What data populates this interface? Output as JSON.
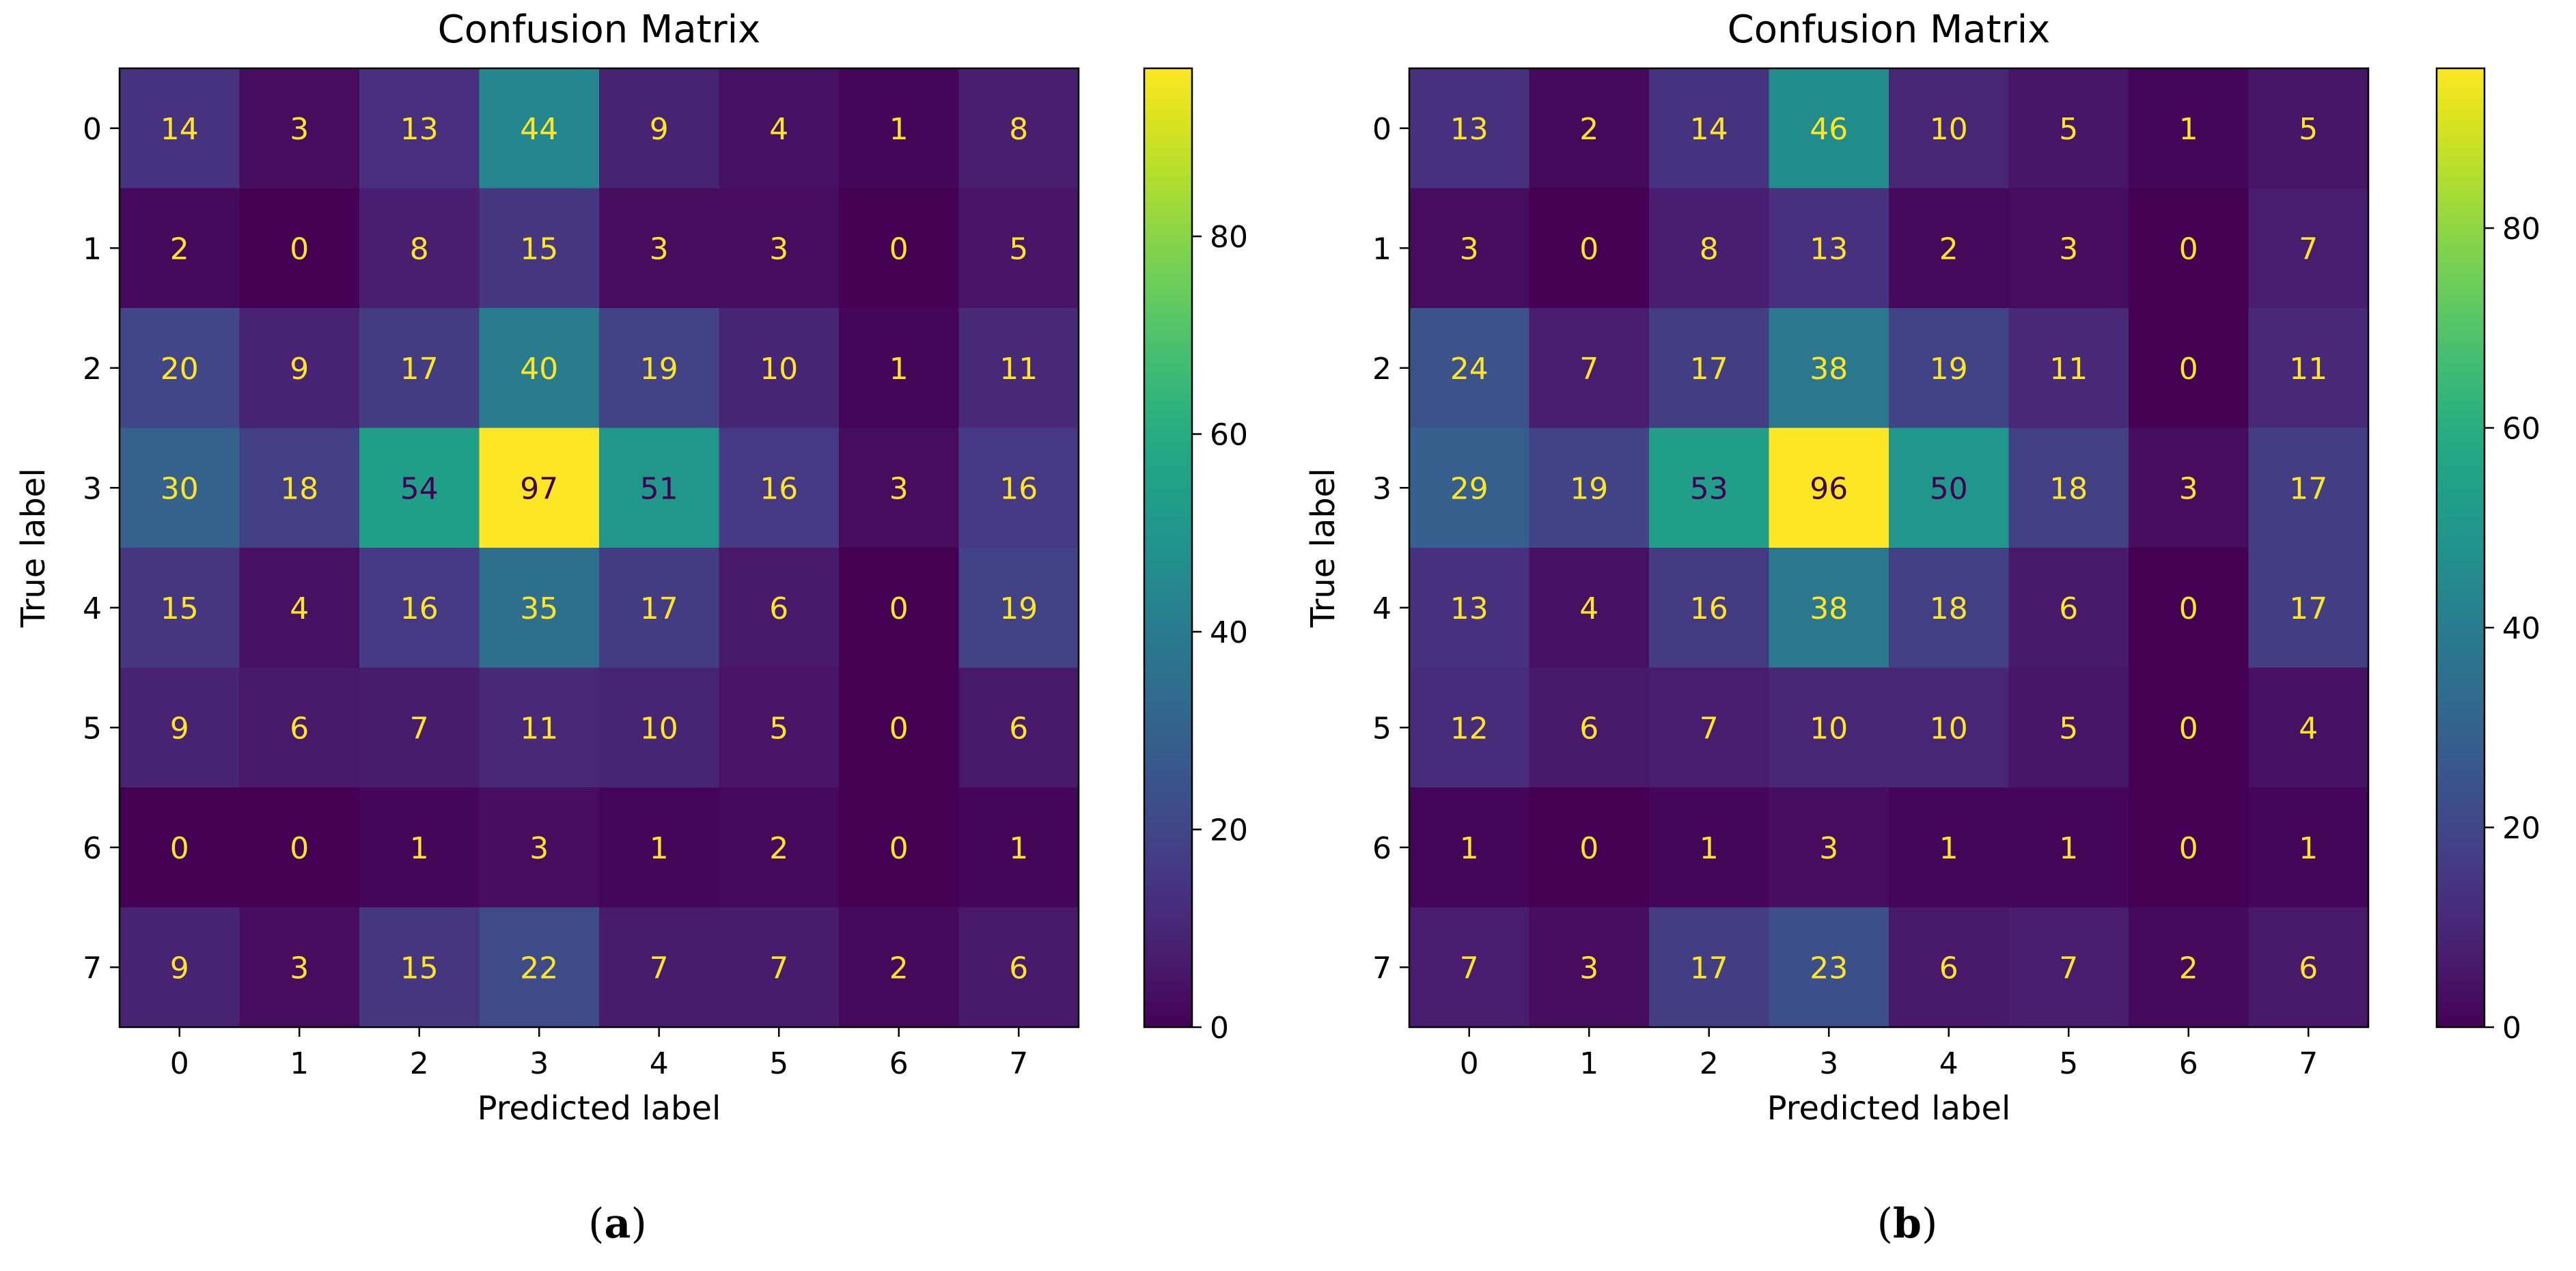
{
  "chart_data": [
    {
      "type": "heatmap",
      "title": "Confusion Matrix",
      "xlabel": "Predicted label",
      "ylabel": "True label",
      "x_tick_labels": [
        "0",
        "1",
        "2",
        "3",
        "4",
        "5",
        "6",
        "7"
      ],
      "y_tick_labels": [
        "0",
        "1",
        "2",
        "3",
        "4",
        "5",
        "6",
        "7"
      ],
      "colormap": "viridis",
      "color_range": [
        0,
        97
      ],
      "colorbar_ticks": [
        "0",
        "20",
        "40",
        "60",
        "80"
      ],
      "caption_letter": "a",
      "matrix": [
        [
          14,
          3,
          13,
          44,
          9,
          4,
          1,
          8
        ],
        [
          2,
          0,
          8,
          15,
          3,
          3,
          0,
          5
        ],
        [
          20,
          9,
          17,
          40,
          19,
          10,
          1,
          11
        ],
        [
          30,
          18,
          54,
          97,
          51,
          16,
          3,
          16
        ],
        [
          15,
          4,
          16,
          35,
          17,
          6,
          0,
          19
        ],
        [
          9,
          6,
          7,
          11,
          10,
          5,
          0,
          6
        ],
        [
          0,
          0,
          1,
          3,
          1,
          2,
          0,
          1
        ],
        [
          9,
          3,
          15,
          22,
          7,
          7,
          2,
          6
        ]
      ]
    },
    {
      "type": "heatmap",
      "title": "Confusion Matrix",
      "xlabel": "Predicted label",
      "ylabel": "True label",
      "x_tick_labels": [
        "0",
        "1",
        "2",
        "3",
        "4",
        "5",
        "6",
        "7"
      ],
      "y_tick_labels": [
        "0",
        "1",
        "2",
        "3",
        "4",
        "5",
        "6",
        "7"
      ],
      "colormap": "viridis",
      "color_range": [
        0,
        96
      ],
      "colorbar_ticks": [
        "0",
        "20",
        "40",
        "60",
        "80"
      ],
      "caption_letter": "b",
      "matrix": [
        [
          13,
          2,
          14,
          46,
          10,
          5,
          1,
          5
        ],
        [
          3,
          0,
          8,
          13,
          2,
          3,
          0,
          7
        ],
        [
          24,
          7,
          17,
          38,
          19,
          11,
          0,
          11
        ],
        [
          29,
          19,
          53,
          96,
          50,
          18,
          3,
          17
        ],
        [
          13,
          4,
          16,
          38,
          18,
          6,
          0,
          17
        ],
        [
          12,
          6,
          7,
          10,
          10,
          5,
          0,
          4
        ],
        [
          1,
          0,
          1,
          3,
          1,
          1,
          0,
          1
        ],
        [
          7,
          3,
          17,
          23,
          6,
          7,
          2,
          6
        ]
      ]
    }
  ],
  "colors": {
    "text_light": "#fde725",
    "text_dark": "#440154",
    "axis": "#000000"
  }
}
